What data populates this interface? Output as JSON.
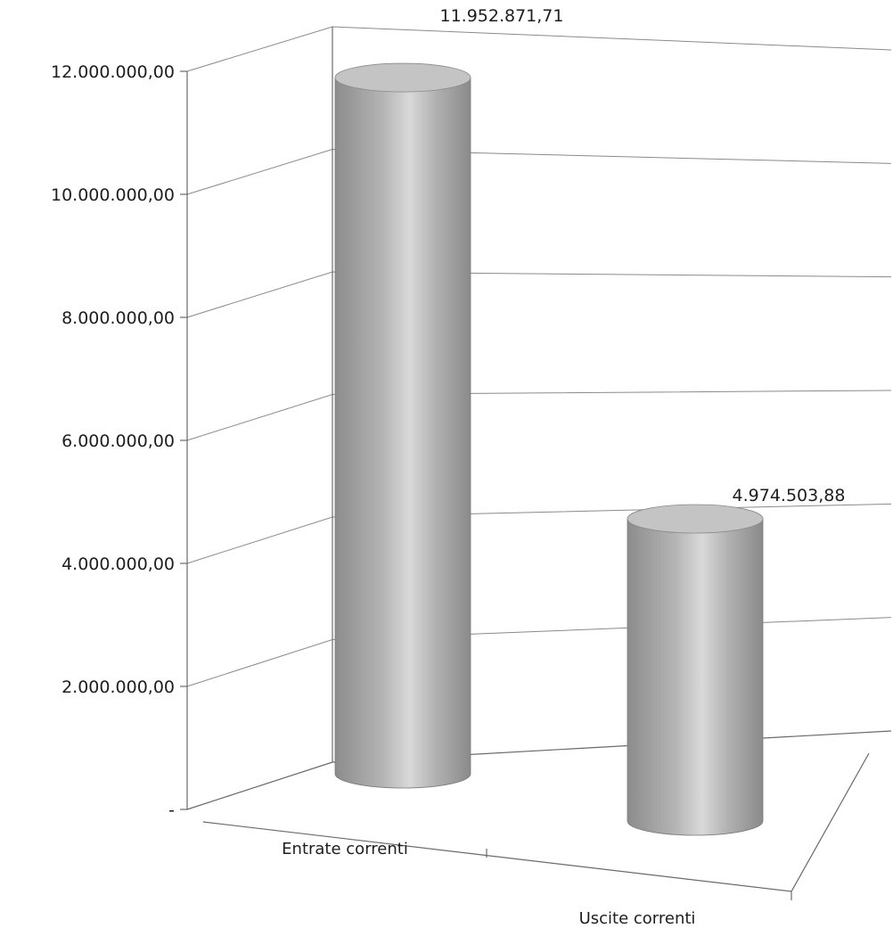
{
  "chart_data": {
    "type": "bar",
    "categories": [
      "Entrate correnti",
      "Uscite correnti"
    ],
    "values": [
      11952871.71,
      4974503.88
    ],
    "data_labels": [
      "11.952.871,71",
      "4.974.503,88"
    ],
    "ylim": [
      0,
      12000000
    ],
    "y_ticks": [
      0,
      2000000,
      4000000,
      6000000,
      8000000,
      10000000,
      12000000
    ],
    "y_tick_labels": [
      "-",
      "2.000.000,00",
      "4.000.000,00",
      "6.000.000,00",
      "8.000.000,00",
      "10.000.000,00",
      "12.000.000,00"
    ],
    "grid": true,
    "legend": "none",
    "style": "3d-cylinder",
    "colors": {
      "bar_body": "#9a9a9a",
      "bar_highlight": "#f4f4f4",
      "bar_top": "#c4c4c4",
      "grid": "#8a8a8a"
    }
  }
}
